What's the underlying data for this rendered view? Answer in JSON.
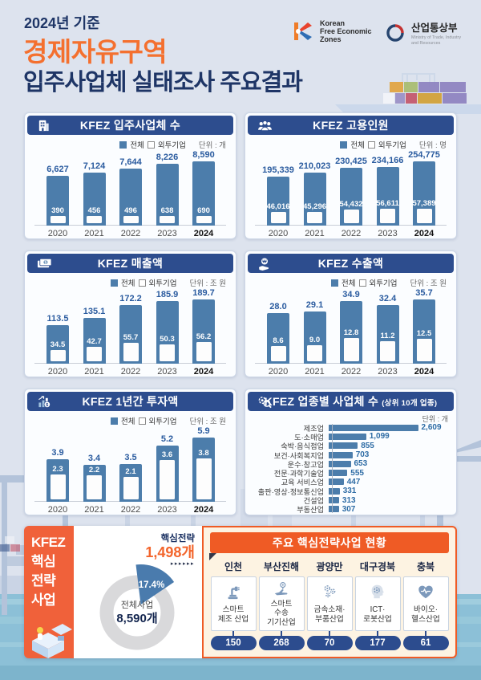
{
  "header": {
    "date_label": "2024년 기준",
    "title_accent": "경제자유구역",
    "title_main": "입주사업체 실태조사 주요결과",
    "kfez_logo": {
      "icon": "kfez-k-logo",
      "text": "Korean\nFree Economic\nZones"
    },
    "ministry_logo": {
      "icon": "taegeuk-logo",
      "name": "산업통상부",
      "subtext": "Ministry of Trade, Industry\nand Resources"
    }
  },
  "legend": {
    "total": "전체",
    "foreign": "외투기업"
  },
  "colors": {
    "navy": "#2d4d8e",
    "bar_blue": "#4c7dab",
    "label_blue": "#2a5b9f",
    "accent_orange": "#f4702f",
    "panel_orange": "#f0613a",
    "header_orange": "#ef5b25",
    "cream": "#fdf3e2",
    "pill_navy": "#2c4c8e",
    "water": "#8cc0d7",
    "donut_gray": "#d9d9db"
  },
  "chart_data": [
    {
      "type": "bar",
      "id": "tenant-companies",
      "icon": "building-icon",
      "title": "KFEZ 입주사업체 수",
      "unit": "단위 : 개",
      "categories": [
        "2020",
        "2021",
        "2022",
        "2023",
        "2024"
      ],
      "series": [
        {
          "name": "전체",
          "values": [
            6627,
            7124,
            7644,
            8226,
            8590
          ],
          "labels": [
            "6,627",
            "7,124",
            "7,644",
            "8,226",
            "8,590"
          ]
        },
        {
          "name": "외투기업",
          "values": [
            390,
            456,
            496,
            638,
            690
          ],
          "labels": [
            "390",
            "456",
            "496",
            "638",
            "690"
          ]
        }
      ]
    },
    {
      "type": "bar",
      "id": "employment",
      "icon": "people-icon",
      "title": "KFEZ 고용인원",
      "unit": "단위 : 명",
      "categories": [
        "2020",
        "2021",
        "2022",
        "2023",
        "2024"
      ],
      "series": [
        {
          "name": "전체",
          "values": [
            195339,
            210023,
            230425,
            234166,
            254775
          ],
          "labels": [
            "195,339",
            "210,023",
            "230,425",
            "234,166",
            "254,775"
          ]
        },
        {
          "name": "외투기업",
          "values": [
            46016,
            45296,
            54432,
            56611,
            57389
          ],
          "labels": [
            "46,016",
            "45,296",
            "54,432",
            "56,611",
            "57,389"
          ]
        }
      ]
    },
    {
      "type": "bar",
      "id": "revenue",
      "icon": "money-icon",
      "title": "KFEZ 매출액",
      "unit": "단위 : 조 원",
      "categories": [
        "2020",
        "2021",
        "2022",
        "2023",
        "2024"
      ],
      "series": [
        {
          "name": "전체",
          "values": [
            113.5,
            135.1,
            172.2,
            185.9,
            189.7
          ],
          "labels": [
            "113.5",
            "135.1",
            "172.2",
            "185.9",
            "189.7"
          ]
        },
        {
          "name": "외투기업",
          "values": [
            34.5,
            42.7,
            55.7,
            50.3,
            56.2
          ],
          "labels": [
            "34.5",
            "42.7",
            "55.7",
            "50.3",
            "56.2"
          ]
        }
      ]
    },
    {
      "type": "bar",
      "id": "exports",
      "icon": "hand-coin-icon",
      "title": "KFEZ 수출액",
      "unit": "단위 : 조 원",
      "categories": [
        "2020",
        "2021",
        "2022",
        "2023",
        "2024"
      ],
      "series": [
        {
          "name": "전체",
          "values": [
            28.0,
            29.1,
            34.9,
            32.4,
            35.7
          ],
          "labels": [
            "28.0",
            "29.1",
            "34.9",
            "32.4",
            "35.7"
          ]
        },
        {
          "name": "외투기업",
          "values": [
            8.6,
            9.0,
            12.8,
            11.2,
            12.5
          ],
          "labels": [
            "8.6",
            "9.0",
            "12.8",
            "11.2",
            "12.5"
          ]
        }
      ]
    },
    {
      "type": "bar",
      "id": "annual-investment",
      "icon": "chart-coin-icon",
      "title": "KFEZ 1년간 투자액",
      "unit": "단위 : 조 원",
      "categories": [
        "2020",
        "2021",
        "2022",
        "2023",
        "2024"
      ],
      "series": [
        {
          "name": "전체",
          "values": [
            3.9,
            3.4,
            3.5,
            5.2,
            5.9
          ],
          "labels": [
            "3.9",
            "3.4",
            "3.5",
            "5.2",
            "5.9"
          ]
        },
        {
          "name": "외투기업",
          "values": [
            2.3,
            2.2,
            2.1,
            3.6,
            3.8
          ],
          "labels": [
            "2.3",
            "2.2",
            "2.1",
            "3.6",
            "3.8"
          ]
        }
      ]
    },
    {
      "type": "bar-horizontal",
      "id": "companies-by-industry",
      "icon": "gear-magnifier-icon",
      "title": "KFEZ 업종별 사업체 수",
      "subtitle": "(상위 10개 업종)",
      "unit": "단위 : 개",
      "categories": [
        "제조업",
        "도·소매업",
        "숙박·음식점업",
        "보건·사회복지업",
        "운수·창고업",
        "전문·과학기술업",
        "교육 서비스업",
        "출판·영상·정보통신업",
        "건설업",
        "부동산업"
      ],
      "values": [
        2609,
        1099,
        855,
        703,
        653,
        555,
        447,
        331,
        313,
        307
      ],
      "labels": [
        "2,609",
        "1,099",
        "855",
        "703",
        "653",
        "555",
        "447",
        "331",
        "313",
        "307"
      ]
    },
    {
      "type": "donut",
      "id": "core-strategy-share",
      "segment_pct": 17.4,
      "pct_label": "17.4%",
      "center_label": "전체사업",
      "center_value": "8,590개",
      "callout_label": "핵심전략",
      "callout_value": "1,498개"
    }
  ],
  "bottom": {
    "core_panel": {
      "lines": [
        "KFEZ",
        "핵심",
        "전략",
        "사업"
      ]
    },
    "donut_arrows": "▸▸▸▸▸▸",
    "status": {
      "title": "주요 핵심전략사업 현황",
      "regions": [
        {
          "name": "인천",
          "icon": "robot-arm-icon",
          "industry": "스마트\n제조 산업",
          "count": "150"
        },
        {
          "name": "부산진해",
          "icon": "transport-icon",
          "industry": "스마트\n수송\n기기산업",
          "count": "268"
        },
        {
          "name": "광양만",
          "icon": "gears-icon",
          "industry": "금속소재·\n부품산업",
          "count": "70"
        },
        {
          "name": "대구경북",
          "icon": "ai-head-icon",
          "industry": "ICT·\n로봇산업",
          "count": "177"
        },
        {
          "name": "충북",
          "icon": "heart-pulse-icon",
          "industry": "바이오·\n헬스산업",
          "count": "61"
        }
      ]
    }
  }
}
